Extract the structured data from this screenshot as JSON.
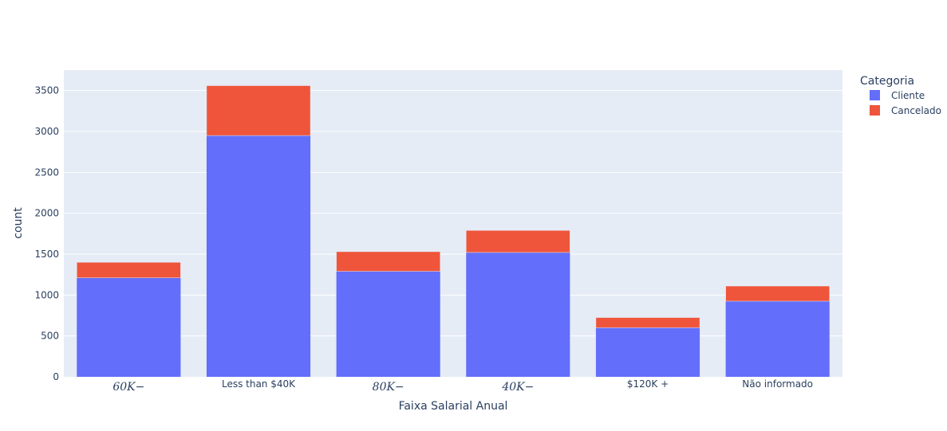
{
  "chart_data": {
    "type": "bar",
    "barmode": "stack",
    "categories": [
      "60K−",
      "Less than $40K",
      "80K−",
      "40K−",
      "$120K +",
      "Não informado"
    ],
    "category_style": [
      "math",
      "plain",
      "math",
      "math",
      "plain",
      "plain"
    ],
    "series": [
      {
        "name": "Cliente",
        "color": "#636efa",
        "values": [
          1210,
          2950,
          1290,
          1520,
          600,
          925
        ]
      },
      {
        "name": "Cancelado",
        "color": "#ef553b",
        "values": [
          190,
          610,
          240,
          270,
          125,
          185
        ]
      }
    ],
    "xlabel": "Faixa Salarial Anual",
    "ylabel": "count",
    "ylim": [
      0,
      3750
    ],
    "yticks": [
      0,
      500,
      1000,
      1500,
      2000,
      2500,
      3000,
      3500
    ],
    "grid": true,
    "plot_bgcolor": "#e5ecf6",
    "legend": {
      "title": "Categoria",
      "placement": "top-right-outside"
    }
  }
}
